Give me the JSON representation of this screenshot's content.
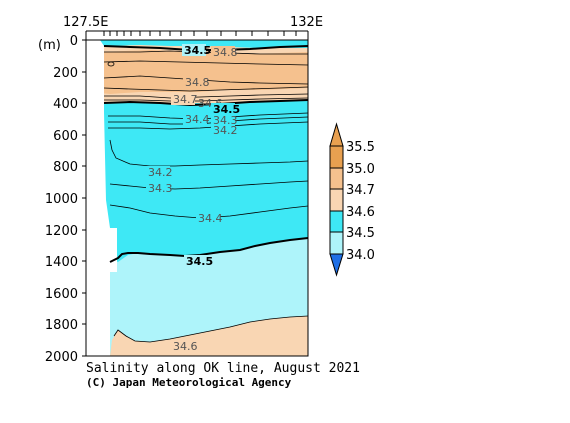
{
  "chart_data": {
    "type": "contour",
    "title": "Salinity along OK line, August 2021",
    "credit": "(C) Japan Meteorological Agency",
    "x_axis": {
      "start_label": "127.5E",
      "end_label": "132E"
    },
    "y_axis": {
      "unit_label": "(m)",
      "range": [
        0,
        2000
      ],
      "ticks": [
        "0",
        "200",
        "400",
        "600",
        "800",
        "1000",
        "1200",
        "1400",
        "1600",
        "1800",
        "2000"
      ]
    },
    "colorbar": {
      "levels": [
        "35.5",
        "35.0",
        "34.7",
        "34.6",
        "34.5",
        "34.0"
      ],
      "colors": [
        "#e8a050",
        "#f5c18e",
        "#f9d6b3",
        "#3ee8f5",
        "#aef4fa"
      ]
    },
    "contour_labels": [
      {
        "text": "34.5",
        "bold": true
      },
      {
        "text": "34.8",
        "bold": false
      },
      {
        "text": "34.8",
        "bold": false
      },
      {
        "text": "34.7",
        "bold": false
      },
      {
        "text": "34.6",
        "bold": false
      },
      {
        "text": "34.5",
        "bold": true
      },
      {
        "text": "34.4",
        "bold": false
      },
      {
        "text": "34.3",
        "bold": false
      },
      {
        "text": "34.2",
        "bold": false
      },
      {
        "text": "34.2",
        "bold": false
      },
      {
        "text": "34.3",
        "bold": false
      },
      {
        "text": "34.4",
        "bold": false
      },
      {
        "text": "34.5",
        "bold": true
      },
      {
        "text": "34.6",
        "bold": false
      }
    ]
  }
}
